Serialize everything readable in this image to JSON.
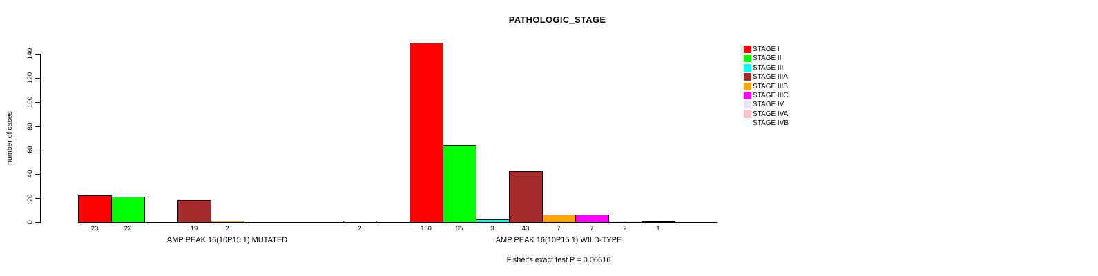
{
  "chart_data": {
    "type": "bar",
    "title": "PATHOLOGIC_STAGE",
    "ylabel": "number of cases",
    "ylim": [
      0,
      150
    ],
    "yticks": [
      0,
      20,
      40,
      60,
      80,
      100,
      120,
      140
    ],
    "grid": false,
    "legend_position": "top-right",
    "bar_border_color": "#000000",
    "categories": [
      "STAGE I",
      "STAGE II",
      "STAGE III",
      "STAGE IIIA",
      "STAGE IIIB",
      "STAGE IIIC",
      "STAGE IV",
      "STAGE IVA",
      "STAGE IVB"
    ],
    "colors": [
      "#FF0000",
      "#00FF00",
      "#00FFFF",
      "#A52A2A",
      "#FFA500",
      "#FF00FF",
      "#E6E6FA",
      "#FFC0CB",
      "#F0FFFF"
    ],
    "groups": [
      {
        "label": "AMP PEAK 16(10P15.1) MUTATED",
        "values": [
          23,
          22,
          0,
          19,
          2,
          0,
          0,
          0,
          2
        ]
      },
      {
        "label": "AMP PEAK 16(10P15.1) WILD-TYPE",
        "values": [
          150,
          65,
          3,
          43,
          7,
          7,
          2,
          1,
          0
        ]
      }
    ],
    "footnote": "Fisher's exact test P = 0.00616"
  }
}
